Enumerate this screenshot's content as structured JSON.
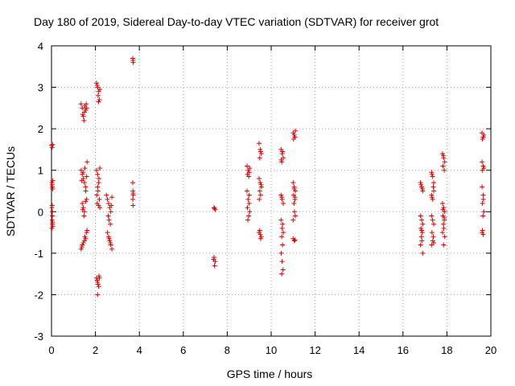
{
  "chart_data": {
    "type": "scatter",
    "title": "Day 180 of 2019, Sidereal Day-to-day VTEC variation (SDTVAR) for receiver grot",
    "xlabel": "GPS time / hours",
    "ylabel": "SDTVAR / TECUs",
    "xlim": [
      0,
      20
    ],
    "ylim": [
      -3,
      4
    ],
    "xticks": [
      0,
      2,
      4,
      6,
      8,
      10,
      12,
      14,
      16,
      18,
      20
    ],
    "yticks": [
      -3,
      -2,
      -1,
      0,
      1,
      2,
      3,
      4
    ],
    "grid": true,
    "marker": "+",
    "marker_color": "#dd0000",
    "series": [
      {
        "name": "SDTVAR",
        "points": [
          [
            0.0,
            1.6
          ],
          [
            0.03,
            1.55
          ],
          [
            0.05,
            1.62
          ],
          [
            0.02,
            0.7
          ],
          [
            0.04,
            0.6
          ],
          [
            0.06,
            0.75
          ],
          [
            0.03,
            0.65
          ],
          [
            0.05,
            0.55
          ],
          [
            0.02,
            0.1
          ],
          [
            0.04,
            -0.1
          ],
          [
            0.03,
            -0.2
          ],
          [
            0.05,
            -0.3
          ],
          [
            0.06,
            -0.35
          ],
          [
            0.02,
            -0.4
          ],
          [
            0.04,
            0.0
          ],
          [
            0.05,
            -0.25
          ],
          [
            0.03,
            0.15
          ],
          [
            1.35,
            2.6
          ],
          [
            1.4,
            2.5
          ],
          [
            1.45,
            2.3
          ],
          [
            1.5,
            2.4
          ],
          [
            1.55,
            2.45
          ],
          [
            1.6,
            2.5
          ],
          [
            1.48,
            2.2
          ],
          [
            1.42,
            2.35
          ],
          [
            1.58,
            2.6
          ],
          [
            1.52,
            2.55
          ],
          [
            1.35,
            1.0
          ],
          [
            1.4,
            0.9
          ],
          [
            1.45,
            0.8
          ],
          [
            1.5,
            0.7
          ],
          [
            1.55,
            0.6
          ],
          [
            1.6,
            0.85
          ],
          [
            1.38,
            0.75
          ],
          [
            1.62,
            1.2
          ],
          [
            1.52,
            1.05
          ],
          [
            1.44,
            0.95
          ],
          [
            1.56,
            0.5
          ],
          [
            1.4,
            0.2
          ],
          [
            1.45,
            0.1
          ],
          [
            1.5,
            0.0
          ],
          [
            1.55,
            0.25
          ],
          [
            1.6,
            0.3
          ],
          [
            1.48,
            -0.1
          ],
          [
            1.42,
            0.05
          ],
          [
            1.35,
            -0.9
          ],
          [
            1.4,
            -0.8
          ],
          [
            1.45,
            -0.75
          ],
          [
            1.5,
            -0.7
          ],
          [
            1.55,
            -0.65
          ],
          [
            1.6,
            -0.5
          ],
          [
            1.38,
            -0.85
          ],
          [
            1.62,
            -0.45
          ],
          [
            1.52,
            -0.6
          ],
          [
            2.05,
            3.1
          ],
          [
            2.1,
            3.0
          ],
          [
            2.15,
            2.9
          ],
          [
            2.12,
            2.8
          ],
          [
            2.18,
            2.7
          ],
          [
            2.08,
            3.05
          ],
          [
            2.2,
            2.95
          ],
          [
            2.14,
            2.65
          ],
          [
            2.05,
            1.0
          ],
          [
            2.1,
            0.9
          ],
          [
            2.15,
            0.7
          ],
          [
            2.12,
            0.5
          ],
          [
            2.18,
            0.3
          ],
          [
            2.08,
            0.2
          ],
          [
            2.2,
            0.1
          ],
          [
            2.1,
            0.6
          ],
          [
            2.16,
            0.8
          ],
          [
            2.06,
            0.4
          ],
          [
            2.14,
            0.15
          ],
          [
            2.2,
            1.05
          ],
          [
            2.05,
            -1.6
          ],
          [
            2.1,
            -1.7
          ],
          [
            2.15,
            -1.8
          ],
          [
            2.08,
            -1.65
          ],
          [
            2.12,
            -1.75
          ],
          [
            2.18,
            -1.6
          ],
          [
            2.1,
            -2.0
          ],
          [
            2.16,
            -1.55
          ],
          [
            2.5,
            0.4
          ],
          [
            2.55,
            0.3
          ],
          [
            2.6,
            0.2
          ],
          [
            2.65,
            0.1
          ],
          [
            2.7,
            0.0
          ],
          [
            2.75,
            0.35
          ],
          [
            2.58,
            -0.1
          ],
          [
            2.62,
            -0.2
          ],
          [
            2.68,
            -0.3
          ],
          [
            2.72,
            0.15
          ],
          [
            2.55,
            -0.5
          ],
          [
            2.6,
            -0.6
          ],
          [
            2.65,
            -0.7
          ],
          [
            2.7,
            -0.8
          ],
          [
            2.75,
            -0.9
          ],
          [
            2.62,
            -0.65
          ],
          [
            2.68,
            -0.75
          ],
          [
            3.7,
            3.7
          ],
          [
            3.72,
            3.6
          ],
          [
            3.71,
            3.65
          ],
          [
            3.7,
            0.7
          ],
          [
            3.71,
            0.5
          ],
          [
            3.72,
            0.4
          ],
          [
            3.7,
            0.3
          ],
          [
            3.71,
            0.15
          ],
          [
            3.72,
            0.45
          ],
          [
            7.4,
            0.1
          ],
          [
            7.45,
            0.05
          ],
          [
            7.42,
            0.08
          ],
          [
            7.4,
            -1.1
          ],
          [
            7.45,
            -1.2
          ],
          [
            7.42,
            -1.3
          ],
          [
            7.38,
            -1.15
          ],
          [
            8.9,
            1.1
          ],
          [
            8.95,
            1.0
          ],
          [
            9.0,
            0.95
          ],
          [
            8.92,
            0.9
          ],
          [
            9.02,
            1.05
          ],
          [
            8.98,
            0.85
          ],
          [
            8.9,
            0.5
          ],
          [
            8.95,
            0.3
          ],
          [
            9.0,
            0.2
          ],
          [
            8.92,
            0.1
          ],
          [
            9.02,
            0.0
          ],
          [
            8.98,
            -0.1
          ],
          [
            8.94,
            -0.2
          ],
          [
            9.0,
            0.4
          ],
          [
            9.45,
            1.65
          ],
          [
            9.5,
            1.5
          ],
          [
            9.55,
            1.4
          ],
          [
            9.48,
            1.3
          ],
          [
            9.52,
            1.45
          ],
          [
            9.45,
            0.8
          ],
          [
            9.5,
            0.7
          ],
          [
            9.55,
            0.6
          ],
          [
            9.48,
            0.5
          ],
          [
            9.52,
            0.4
          ],
          [
            9.46,
            0.3
          ],
          [
            9.54,
            0.65
          ],
          [
            9.45,
            -0.5
          ],
          [
            9.5,
            -0.55
          ],
          [
            9.55,
            -0.6
          ],
          [
            9.48,
            -0.45
          ],
          [
            9.52,
            -0.65
          ],
          [
            10.45,
            1.5
          ],
          [
            10.5,
            1.4
          ],
          [
            10.55,
            1.3
          ],
          [
            10.48,
            1.2
          ],
          [
            10.52,
            1.45
          ],
          [
            10.46,
            1.25
          ],
          [
            10.45,
            0.4
          ],
          [
            10.5,
            0.3
          ],
          [
            10.55,
            0.2
          ],
          [
            10.48,
            0.35
          ],
          [
            10.45,
            -0.2
          ],
          [
            10.5,
            -0.4
          ],
          [
            10.55,
            -0.5
          ],
          [
            10.48,
            -0.6
          ],
          [
            10.52,
            -0.8
          ],
          [
            10.46,
            -1.0
          ],
          [
            10.5,
            -1.2
          ],
          [
            10.54,
            -1.4
          ],
          [
            10.48,
            -1.5
          ],
          [
            10.52,
            -0.3
          ],
          [
            11.0,
            1.9
          ],
          [
            11.05,
            1.85
          ],
          [
            11.1,
            1.95
          ],
          [
            11.02,
            1.75
          ],
          [
            11.08,
            1.8
          ],
          [
            11.0,
            0.7
          ],
          [
            11.05,
            0.6
          ],
          [
            11.1,
            0.5
          ],
          [
            11.02,
            0.4
          ],
          [
            11.08,
            0.3
          ],
          [
            11.04,
            0.2
          ],
          [
            11.06,
            0.0
          ],
          [
            11.1,
            -0.1
          ],
          [
            11.0,
            -0.2
          ],
          [
            11.05,
            0.55
          ],
          [
            11.08,
            0.35
          ],
          [
            11.0,
            -0.65
          ],
          [
            11.05,
            -0.7
          ],
          [
            11.08,
            -0.68
          ],
          [
            16.8,
            0.7
          ],
          [
            16.85,
            0.6
          ],
          [
            16.9,
            0.5
          ],
          [
            16.82,
            0.65
          ],
          [
            16.88,
            0.55
          ],
          [
            16.8,
            -0.1
          ],
          [
            16.85,
            -0.2
          ],
          [
            16.9,
            -0.3
          ],
          [
            16.82,
            -0.4
          ],
          [
            16.88,
            -0.5
          ],
          [
            16.84,
            -0.6
          ],
          [
            16.86,
            -0.7
          ],
          [
            16.8,
            -0.8
          ],
          [
            16.9,
            -1.0
          ],
          [
            16.85,
            -0.45
          ],
          [
            17.3,
            0.95
          ],
          [
            17.35,
            0.85
          ],
          [
            17.4,
            0.7
          ],
          [
            17.32,
            0.9
          ],
          [
            17.38,
            0.6
          ],
          [
            17.3,
            0.4
          ],
          [
            17.35,
            0.3
          ],
          [
            17.4,
            0.5
          ],
          [
            17.32,
            0.35
          ],
          [
            17.3,
            -0.1
          ],
          [
            17.35,
            -0.2
          ],
          [
            17.4,
            -0.3
          ],
          [
            17.32,
            -0.5
          ],
          [
            17.38,
            -0.6
          ],
          [
            17.36,
            -0.7
          ],
          [
            17.3,
            -0.8
          ],
          [
            17.4,
            -0.75
          ],
          [
            17.8,
            1.4
          ],
          [
            17.85,
            1.3
          ],
          [
            17.9,
            1.2
          ],
          [
            17.82,
            1.1
          ],
          [
            17.88,
            1.0
          ],
          [
            17.84,
            1.35
          ],
          [
            17.8,
            0.2
          ],
          [
            17.85,
            0.1
          ],
          [
            17.9,
            0.0
          ],
          [
            17.82,
            -0.1
          ],
          [
            17.88,
            -0.2
          ],
          [
            17.84,
            -0.3
          ],
          [
            17.86,
            -0.4
          ],
          [
            17.8,
            -0.5
          ],
          [
            17.9,
            -0.6
          ],
          [
            17.85,
            -0.8
          ],
          [
            17.82,
            0.05
          ],
          [
            17.88,
            -0.15
          ],
          [
            19.6,
            1.9
          ],
          [
            19.65,
            1.8
          ],
          [
            19.62,
            1.75
          ],
          [
            19.68,
            1.85
          ],
          [
            19.6,
            1.2
          ],
          [
            19.65,
            1.1
          ],
          [
            19.62,
            1.0
          ],
          [
            19.68,
            1.05
          ],
          [
            19.6,
            0.6
          ],
          [
            19.65,
            0.4
          ],
          [
            19.62,
            0.2
          ],
          [
            19.68,
            0.0
          ],
          [
            19.64,
            -0.1
          ],
          [
            19.66,
            0.3
          ],
          [
            19.6,
            -0.5
          ],
          [
            19.65,
            -0.55
          ],
          [
            19.62,
            -0.45
          ]
        ]
      }
    ]
  }
}
